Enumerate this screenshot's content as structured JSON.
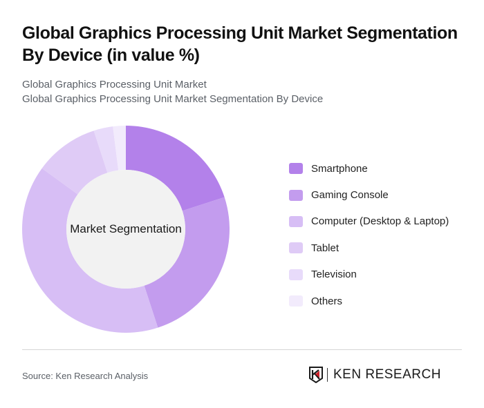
{
  "title": "Global Graphics Processing Unit Market Segmentation By Device (in value %)",
  "subtitles": [
    "Global Graphics Processing Unit Market",
    "Global Graphics Processing Unit Market Segmentation By Device"
  ],
  "center_label": "Market Segmentation",
  "legend": [
    {
      "label": "Smartphone",
      "color": "#B381EA"
    },
    {
      "label": "Gaming Console",
      "color": "#C39CEE"
    },
    {
      "label": "Computer (Desktop & Laptop)",
      "color": "#D7BEF5"
    },
    {
      "label": "Tablet",
      "color": "#DFCBF6"
    },
    {
      "label": "Television",
      "color": "#E8DBFA"
    },
    {
      "label": "Others",
      "color": "#F2EBFC"
    }
  ],
  "footer": {
    "source": "Source: Ken Research Analysis",
    "brand": "KEN RESEARCH"
  },
  "chart_data": {
    "type": "pie",
    "donut": true,
    "title": "Global Graphics Processing Unit Market Segmentation By Device (in value %)",
    "center_label": "Market Segmentation",
    "categories": [
      "Smartphone",
      "Gaming Console",
      "Computer (Desktop & Laptop)",
      "Tablet",
      "Television",
      "Others"
    ],
    "values": [
      20,
      25,
      40,
      10,
      3,
      2
    ],
    "colors": [
      "#B381EA",
      "#C39CEE",
      "#D7BEF5",
      "#DFCBF6",
      "#E8DBFA",
      "#F2EBFC"
    ],
    "start_angle": "12 o'clock, clockwise",
    "legend_position": "right",
    "unit": "%"
  }
}
